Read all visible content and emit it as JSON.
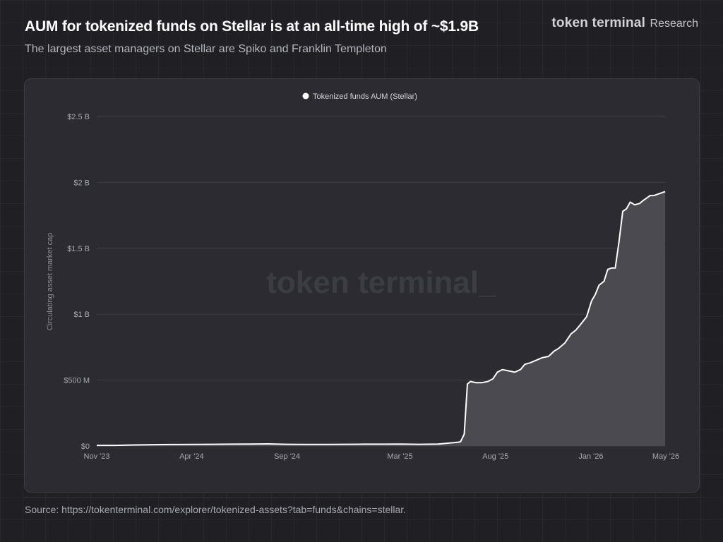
{
  "header": {
    "title": "AUM for tokenized funds on Stellar is at an all-time high of ~$1.9B",
    "subtitle": "The largest asset managers on Stellar are Spiko and Franklin Templeton",
    "brand_name": "token terminal",
    "brand_sub": "Research"
  },
  "watermark": "token terminal_",
  "footer": {
    "source": "Source: https://tokenterminal.com/explorer/tokenized-assets?tab=funds&chains=stellar."
  },
  "colors": {
    "line": "#ffffff",
    "area": "#4a4a50",
    "grid": "#3d3d45",
    "text": "#a8a8b0"
  },
  "chart_data": {
    "type": "area",
    "title": "",
    "xlabel": "",
    "ylabel": "Circulating asset market cap",
    "legend": [
      "Tokenized funds AUM (Stellar)"
    ],
    "legend_position": "top-center",
    "grid": true,
    "ylim": [
      0,
      2.5
    ],
    "y_unit": "B",
    "y_ticks": [
      {
        "v": 0,
        "label": "$0"
      },
      {
        "v": 0.5,
        "label": "$500 M"
      },
      {
        "v": 1,
        "label": "$1 B"
      },
      {
        "v": 1.5,
        "label": "$1.5 B"
      },
      {
        "v": 2,
        "label": "$2 B"
      },
      {
        "v": 2.5,
        "label": "$2.5 B"
      }
    ],
    "x_ticks": [
      {
        "date": "2023-11-01",
        "label": "Nov '23"
      },
      {
        "date": "2024-04-01",
        "label": "Apr '24"
      },
      {
        "date": "2024-09-01",
        "label": "Sep '24"
      },
      {
        "date": "2025-03-01",
        "label": "Mar '25"
      },
      {
        "date": "2025-08-01",
        "label": "Aug '25"
      },
      {
        "date": "2026-01-01",
        "label": "Jan '26"
      },
      {
        "date": "2026-05-01",
        "label": "May '26"
      }
    ],
    "series": [
      {
        "name": "Tokenized funds AUM (Stellar)",
        "x": [
          "2023-11-01",
          "2023-12-01",
          "2024-01-01",
          "2024-02-01",
          "2024-03-01",
          "2024-04-01",
          "2024-05-01",
          "2024-06-01",
          "2024-07-01",
          "2024-08-01",
          "2024-09-01",
          "2024-10-01",
          "2024-11-01",
          "2024-12-01",
          "2025-01-01",
          "2025-02-01",
          "2025-03-01",
          "2025-04-01",
          "2025-05-01",
          "2025-06-01",
          "2025-06-06",
          "2025-06-12",
          "2025-06-17",
          "2025-06-22",
          "2025-07-01",
          "2025-07-10",
          "2025-07-20",
          "2025-07-28",
          "2025-08-04",
          "2025-08-12",
          "2025-08-22",
          "2025-09-01",
          "2025-09-10",
          "2025-09-17",
          "2025-09-25",
          "2025-10-05",
          "2025-10-15",
          "2025-10-25",
          "2025-11-03",
          "2025-11-10",
          "2025-11-20",
          "2025-11-30",
          "2025-12-08",
          "2025-12-15",
          "2025-12-25",
          "2026-01-02",
          "2026-01-08",
          "2026-01-14",
          "2026-01-22",
          "2026-01-28",
          "2026-02-03",
          "2026-02-09",
          "2026-02-15",
          "2026-02-21",
          "2026-02-27",
          "2026-03-05",
          "2026-03-12",
          "2026-03-20",
          "2026-03-25",
          "2026-03-31",
          "2026-04-06",
          "2026-04-12",
          "2026-04-18",
          "2026-04-24",
          "2026-04-30"
        ],
        "values": [
          0.005,
          0.005,
          0.008,
          0.01,
          0.011,
          0.012,
          0.013,
          0.014,
          0.015,
          0.016,
          0.013,
          0.012,
          0.012,
          0.013,
          0.014,
          0.014,
          0.015,
          0.013,
          0.015,
          0.028,
          0.032,
          0.09,
          0.47,
          0.49,
          0.48,
          0.48,
          0.49,
          0.51,
          0.56,
          0.58,
          0.57,
          0.56,
          0.58,
          0.62,
          0.63,
          0.65,
          0.67,
          0.68,
          0.72,
          0.74,
          0.78,
          0.85,
          0.88,
          0.92,
          0.98,
          1.1,
          1.15,
          1.22,
          1.25,
          1.34,
          1.35,
          1.35,
          1.55,
          1.78,
          1.8,
          1.85,
          1.83,
          1.84,
          1.86,
          1.88,
          1.9,
          1.9,
          1.91,
          1.92,
          1.93
        ]
      }
    ]
  }
}
